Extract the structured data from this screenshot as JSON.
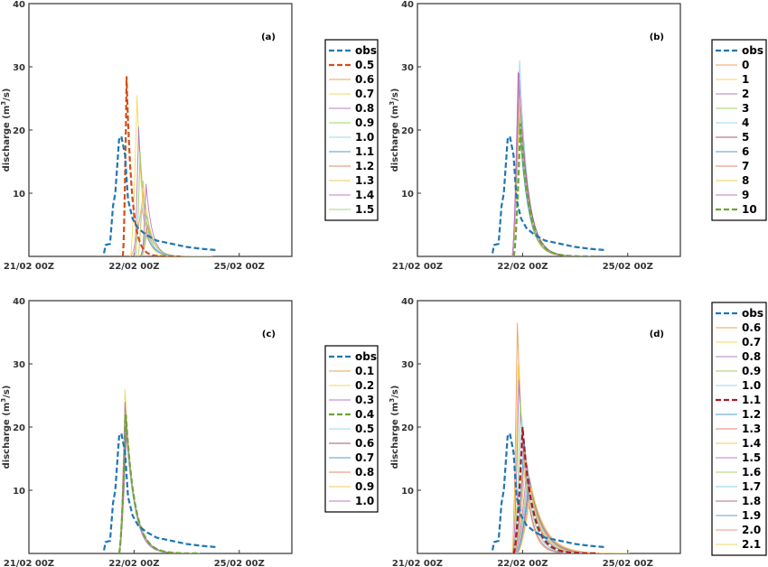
{
  "chart_data": [
    {
      "type": "line",
      "panel_label": "(a)",
      "ylabel": "discharge (m3/s)",
      "ylabel_base": "discharge (m",
      "ylabel_sup": "3",
      "ylabel_tail": "/s)",
      "ylim": [
        0,
        40
      ],
      "yticks": [
        10,
        20,
        30,
        40
      ],
      "x_range_days": [
        0,
        4
      ],
      "xticks": [
        {
          "label": "21/02 00Z",
          "day": 0
        },
        {
          "label": "22/02 00Z",
          "day": 1
        },
        {
          "label": "25/02 00Z",
          "day": 2
        }
      ],
      "highlight": "0.5",
      "series": [
        {
          "name": "obs",
          "color": "#1f77b4",
          "dashed": true,
          "params": {
            "type": "obs"
          }
        },
        {
          "name": "0.5",
          "color": "#d44f17",
          "dashed": true,
          "params": {
            "type": "sim",
            "t0": 1.25,
            "peak": 28.5,
            "tp": 1.3,
            "w": 0.07
          }
        },
        {
          "name": "0.6",
          "color": "#ef9f56",
          "params": {
            "type": "sim",
            "t0": 1.35,
            "peak": 8,
            "tp": 1.5,
            "w": 0.1
          }
        },
        {
          "name": "0.7",
          "color": "#f7d75b",
          "params": {
            "type": "sim",
            "t0": 1.35,
            "peak": 25.5,
            "tp": 1.44,
            "w": 0.07
          }
        },
        {
          "name": "0.8",
          "color": "#b07cc6",
          "params": {
            "type": "sim",
            "t0": 1.4,
            "peak": 20.5,
            "tp": 1.46,
            "w": 0.08
          }
        },
        {
          "name": "0.9",
          "color": "#9ed36a",
          "params": {
            "type": "sim",
            "t0": 1.42,
            "peak": 16.5,
            "tp": 1.48,
            "w": 0.08
          }
        },
        {
          "name": "1.0",
          "color": "#9ad7ef",
          "params": {
            "type": "sim",
            "t0": 1.45,
            "peak": 8.5,
            "tp": 1.5,
            "w": 0.1
          }
        },
        {
          "name": "1.1",
          "color": "#4d9cd1",
          "params": {
            "type": "sim",
            "t0": 1.48,
            "peak": 4,
            "tp": 1.55,
            "w": 0.1
          }
        },
        {
          "name": "1.2",
          "color": "#e6876c",
          "params": {
            "type": "sim",
            "t0": 1.5,
            "peak": 5,
            "tp": 1.58,
            "w": 0.1
          }
        },
        {
          "name": "1.3",
          "color": "#f1c95a",
          "params": {
            "type": "sim",
            "t0": 1.45,
            "peak": 12,
            "tp": 1.52,
            "w": 0.09
          }
        },
        {
          "name": "1.4",
          "color": "#c27acb",
          "params": {
            "type": "sim",
            "t0": 1.5,
            "peak": 11.5,
            "tp": 1.56,
            "w": 0.08
          }
        },
        {
          "name": "1.5",
          "color": "#a8d572",
          "params": {
            "type": "sim",
            "t0": 1.5,
            "peak": 6.5,
            "tp": 1.57,
            "w": 0.09
          }
        }
      ]
    },
    {
      "type": "line",
      "panel_label": "(b)",
      "ylabel": "discharge (m3/s)",
      "ylabel_base": "discharge (m",
      "ylabel_sup": "3",
      "ylabel_tail": "/s)",
      "ylim": [
        0,
        40
      ],
      "yticks": [
        10,
        20,
        30,
        40
      ],
      "x_range_days": [
        0,
        4
      ],
      "xticks": [
        {
          "label": "21/02 00Z",
          "day": 0
        },
        {
          "label": "22/02 00Z",
          "day": 1
        },
        {
          "label": "25/02 00Z",
          "day": 2
        }
      ],
      "highlight": "10",
      "series": [
        {
          "name": "obs",
          "color": "#1f77b4",
          "dashed": true,
          "params": {
            "type": "obs"
          }
        },
        {
          "name": "0",
          "color": "#ef9f56",
          "params": {
            "type": "sim",
            "t0": 1.26,
            "peak": 28.5,
            "tp": 1.35,
            "w": 0.11
          }
        },
        {
          "name": "1",
          "color": "#f7d75b",
          "params": {
            "type": "sim",
            "t0": 1.26,
            "peak": 27.5,
            "tp": 1.35,
            "w": 0.11
          }
        },
        {
          "name": "2",
          "color": "#b07cc6",
          "params": {
            "type": "sim",
            "t0": 1.26,
            "peak": 29.2,
            "tp": 1.34,
            "w": 0.11
          }
        },
        {
          "name": "3",
          "color": "#9ed36a",
          "params": {
            "type": "sim",
            "t0": 1.26,
            "peak": 24,
            "tp": 1.35,
            "w": 0.11
          }
        },
        {
          "name": "4",
          "color": "#9ad7ef",
          "params": {
            "type": "sim",
            "t0": 1.27,
            "peak": 31,
            "tp": 1.36,
            "w": 0.11
          }
        },
        {
          "name": "5",
          "color": "#a9527e",
          "params": {
            "type": "sim",
            "t0": 1.26,
            "peak": 29,
            "tp": 1.35,
            "w": 0.12
          }
        },
        {
          "name": "6",
          "color": "#4d9cd1",
          "params": {
            "type": "sim",
            "t0": 1.26,
            "peak": 22,
            "tp": 1.35,
            "w": 0.12
          }
        },
        {
          "name": "7",
          "color": "#e6876c",
          "params": {
            "type": "sim",
            "t0": 1.26,
            "peak": 26,
            "tp": 1.36,
            "w": 0.11
          }
        },
        {
          "name": "8",
          "color": "#f1c95a",
          "params": {
            "type": "sim",
            "t0": 1.26,
            "peak": 25,
            "tp": 1.36,
            "w": 0.11
          }
        },
        {
          "name": "9",
          "color": "#c27acb",
          "params": {
            "type": "sim",
            "t0": 1.26,
            "peak": 29,
            "tp": 1.35,
            "w": 0.11
          }
        },
        {
          "name": "10",
          "color": "#6aa532",
          "dashed": true,
          "params": {
            "type": "sim",
            "t0": 1.28,
            "peak": 21,
            "tp": 1.37,
            "w": 0.12
          }
        }
      ]
    },
    {
      "type": "line",
      "panel_label": "(c)",
      "ylabel": "discharge (m3/s)",
      "ylabel_base": "discharge (m",
      "ylabel_sup": "3",
      "ylabel_tail": "/s)",
      "ylim": [
        0,
        40
      ],
      "yticks": [
        10,
        20,
        30,
        40
      ],
      "x_range_days": [
        0,
        4
      ],
      "xticks": [
        {
          "label": "21/02 00Z",
          "day": 0
        },
        {
          "label": "22/02 00Z",
          "day": 1
        },
        {
          "label": "25/02 00Z",
          "day": 2
        }
      ],
      "highlight": "0.4",
      "series": [
        {
          "name": "obs",
          "color": "#1f77b4",
          "dashed": true,
          "params": {
            "type": "obs"
          }
        },
        {
          "name": "0.1",
          "color": "#ef9f56",
          "params": {
            "type": "sim",
            "t0": 1.2,
            "peak": 21,
            "tp": 1.29,
            "w": 0.12
          }
        },
        {
          "name": "0.2",
          "color": "#f7d75b",
          "params": {
            "type": "sim",
            "t0": 1.2,
            "peak": 26,
            "tp": 1.28,
            "w": 0.11
          }
        },
        {
          "name": "0.3",
          "color": "#b07cc6",
          "params": {
            "type": "sim",
            "t0": 1.2,
            "peak": 24,
            "tp": 1.28,
            "w": 0.11
          }
        },
        {
          "name": "0.4",
          "color": "#6aa532",
          "dashed": true,
          "params": {
            "type": "sim",
            "t0": 1.2,
            "peak": 22,
            "tp": 1.29,
            "w": 0.12
          }
        },
        {
          "name": "0.5",
          "color": "#9ad7ef",
          "params": {
            "type": "sim",
            "t0": 1.2,
            "peak": 20,
            "tp": 1.29,
            "w": 0.12
          }
        },
        {
          "name": "0.6",
          "color": "#a9527e",
          "params": {
            "type": "sim",
            "t0": 1.2,
            "peak": 21,
            "tp": 1.29,
            "w": 0.12
          }
        },
        {
          "name": "0.7",
          "color": "#4d9cd1",
          "params": {
            "type": "sim",
            "t0": 1.2,
            "peak": 20,
            "tp": 1.3,
            "w": 0.12
          }
        },
        {
          "name": "0.8",
          "color": "#e6876c",
          "params": {
            "type": "sim",
            "t0": 1.2,
            "peak": 20.5,
            "tp": 1.3,
            "w": 0.12
          }
        },
        {
          "name": "0.9",
          "color": "#f1c95a",
          "params": {
            "type": "sim",
            "t0": 1.2,
            "peak": 19.5,
            "tp": 1.3,
            "w": 0.12
          }
        },
        {
          "name": "1.0",
          "color": "#c27acb",
          "params": {
            "type": "sim",
            "t0": 1.2,
            "peak": 20,
            "tp": 1.3,
            "w": 0.12
          }
        }
      ]
    },
    {
      "type": "line",
      "panel_label": "(d)",
      "ylabel": "discharge (m3/s)",
      "ylabel_base": "discharge (m",
      "ylabel_sup": "3",
      "ylabel_tail": "/s)",
      "ylim": [
        0,
        40
      ],
      "yticks": [
        10,
        20,
        30,
        40
      ],
      "x_range_days": [
        0,
        4
      ],
      "xticks": [
        {
          "label": "21/02 00Z",
          "day": 0
        },
        {
          "label": "22/02 00Z",
          "day": 1
        },
        {
          "label": "25/02 00Z",
          "day": 2
        }
      ],
      "highlight": "1.1",
      "series": [
        {
          "name": "obs",
          "color": "#1f77b4",
          "dashed": true,
          "params": {
            "type": "obs"
          }
        },
        {
          "name": "0.6",
          "color": "#ef9f56",
          "params": {
            "type": "sim",
            "t0": 1.26,
            "peak": 36.5,
            "tp": 1.33,
            "w": 0.1
          }
        },
        {
          "name": "0.7",
          "color": "#f7d75b",
          "params": {
            "type": "sim",
            "t0": 1.26,
            "peak": 30,
            "tp": 1.34,
            "w": 0.11
          }
        },
        {
          "name": "0.8",
          "color": "#b07cc6",
          "params": {
            "type": "sim",
            "t0": 1.27,
            "peak": 27.5,
            "tp": 1.35,
            "w": 0.11
          }
        },
        {
          "name": "0.9",
          "color": "#9ed36a",
          "params": {
            "type": "sim",
            "t0": 1.28,
            "peak": 24,
            "tp": 1.37,
            "w": 0.12
          }
        },
        {
          "name": "1.0",
          "color": "#9ad7ef",
          "params": {
            "type": "sim",
            "t0": 1.28,
            "peak": 21.5,
            "tp": 1.39,
            "w": 0.12
          }
        },
        {
          "name": "1.1",
          "color": "#a51d2d",
          "dashed": true,
          "params": {
            "type": "sim",
            "t0": 1.28,
            "peak": 20,
            "tp": 1.4,
            "w": 0.13
          }
        },
        {
          "name": "1.2",
          "color": "#4d9cd1",
          "params": {
            "type": "sim",
            "t0": 1.29,
            "peak": 18,
            "tp": 1.42,
            "w": 0.14
          }
        },
        {
          "name": "1.3",
          "color": "#e6876c",
          "params": {
            "type": "sim",
            "t0": 1.29,
            "peak": 16.5,
            "tp": 1.43,
            "w": 0.15
          }
        },
        {
          "name": "1.4",
          "color": "#f1c95a",
          "params": {
            "type": "sim",
            "t0": 1.3,
            "peak": 15,
            "tp": 1.44,
            "w": 0.15
          }
        },
        {
          "name": "1.5",
          "color": "#c27acb",
          "params": {
            "type": "sim",
            "t0": 1.3,
            "peak": 14,
            "tp": 1.46,
            "w": 0.16
          }
        },
        {
          "name": "1.6",
          "color": "#a8d572",
          "params": {
            "type": "sim",
            "t0": 1.31,
            "peak": 13,
            "tp": 1.47,
            "w": 0.16
          }
        },
        {
          "name": "1.7",
          "color": "#8ccfe8",
          "params": {
            "type": "sim",
            "t0": 1.31,
            "peak": 12.5,
            "tp": 1.48,
            "w": 0.17
          }
        },
        {
          "name": "1.8",
          "color": "#b9698f",
          "params": {
            "type": "sim",
            "t0": 1.32,
            "peak": 12,
            "tp": 1.49,
            "w": 0.17
          }
        },
        {
          "name": "1.9",
          "color": "#5aa6d8",
          "params": {
            "type": "sim",
            "t0": 1.32,
            "peak": 11.5,
            "tp": 1.5,
            "w": 0.18
          }
        },
        {
          "name": "2.0",
          "color": "#ee9977",
          "params": {
            "type": "sim",
            "t0": 1.33,
            "peak": 11,
            "tp": 1.51,
            "w": 0.18
          }
        },
        {
          "name": "2.1",
          "color": "#f3d36a",
          "params": {
            "type": "sim",
            "t0": 1.33,
            "peak": 10.5,
            "tp": 1.52,
            "w": 0.19
          }
        }
      ]
    }
  ]
}
